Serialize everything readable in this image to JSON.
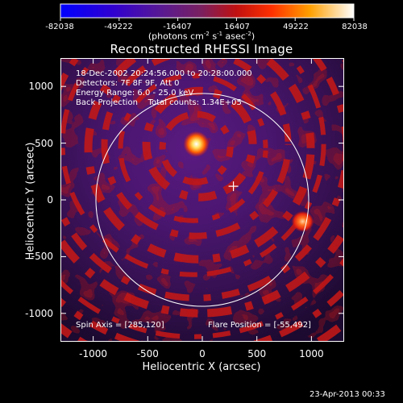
{
  "colorbar": {
    "ticks": [
      "-82038",
      "-49222",
      "-16407",
      "16407",
      "49222",
      "82038"
    ],
    "units_main": "(photons cm",
    "units_sup1": "-2",
    "units_mid1": " s",
    "units_sup2": "-1",
    "units_mid2": " asec",
    "units_sup3": "-2",
    "units_end": ")"
  },
  "title": "Reconstructed RHESSI Image",
  "info": {
    "time_range": "18-Dec-2002 20:24:56.000 to 20:28:00.000",
    "detectors": "Detectors: 7F 8F 9F, Att 0",
    "energy": "Energy Range: 6.0 - 25.0 keV",
    "method": "Back Projection    Total counts: 1.34E+05"
  },
  "spin_axis": "Spin Axis = [285,120]",
  "flare_position": "Flare Position = [-55,492]",
  "footer_date": "23-Apr-2013 00:33",
  "colors": {
    "background": "#000000",
    "limb": "#ffffff"
  },
  "chart_data": {
    "type": "heatmap",
    "title": "Reconstructed RHESSI Image",
    "xlabel": "Heliocentric X (arcsec)",
    "ylabel": "Heliocentric Y (arcsec)",
    "xlim": [
      -1300,
      1300
    ],
    "ylim": [
      -1250,
      1250
    ],
    "x_ticks": [
      "-1000",
      "-500",
      "0",
      "500",
      "1000"
    ],
    "y_ticks": [
      "-1000",
      "-500",
      "0",
      "500",
      "1000"
    ],
    "x_tick_values": [
      -1000,
      -500,
      0,
      500,
      1000
    ],
    "y_tick_values": [
      -1000,
      -500,
      0,
      500,
      1000
    ],
    "colormap": [
      "#0000ff",
      "#3a00c8",
      "#5a1a8a",
      "#7a3090",
      "#c01020",
      "#ff2000",
      "#ff8000",
      "#ffd000",
      "#ffffff"
    ],
    "value_range": [
      -82038,
      82038
    ],
    "sources": [
      {
        "x": -55,
        "y": 492,
        "peak": 82038
      },
      {
        "x": 920,
        "y": -190,
        "peak": 60000
      }
    ],
    "solar_limb_radius_arcsec": 975,
    "spin_axis_marker": {
      "x": 285,
      "y": 120
    }
  }
}
